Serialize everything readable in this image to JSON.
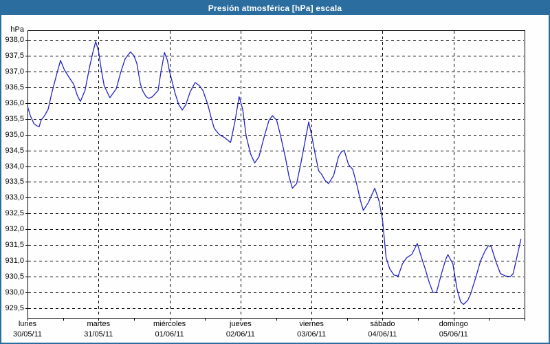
{
  "window": {
    "title": "Presión atmosférica [hPa] escala"
  },
  "colors": {
    "frame": "#2b6d9e",
    "title_text": "#ffffff",
    "plot_background": "#ffffff",
    "grid": "#000000",
    "axis": "#000000",
    "line": "#2323c8",
    "label_text": "#000000"
  },
  "chart_data": {
    "type": "line",
    "title": "Presión atmosférica [hPa] escala",
    "ylabel": "hPa",
    "grid": {
      "style": "dashed",
      "horizontal": true,
      "vertical": "day-boundaries"
    },
    "legend": "none",
    "y_axis": {
      "unit": "hPa",
      "step": 0.5,
      "axis_min": 929.2,
      "axis_max": 938.3,
      "tick_values": [
        938.0,
        937.5,
        937.0,
        936.5,
        936.0,
        935.5,
        935.0,
        934.5,
        934.0,
        933.5,
        933.0,
        932.5,
        932.0,
        931.5,
        931.0,
        930.5,
        930.0,
        929.5
      ],
      "tick_labels": [
        "938,0",
        "937,5",
        "937,0",
        "936,5",
        "936,0",
        "935,5",
        "935,0",
        "934,5",
        "934,0",
        "933,5",
        "933,0",
        "932,5",
        "932,0",
        "931,5",
        "931,0",
        "930,5",
        "930,0",
        "929,5"
      ]
    },
    "x_axis": {
      "units": "days",
      "minor_ticks_per_day": 2,
      "days": [
        {
          "label": "lunes",
          "date": "30/05/11"
        },
        {
          "label": "martes",
          "date": "31/05/11"
        },
        {
          "label": "miércoles",
          "date": "01/06/11"
        },
        {
          "label": "jueves",
          "date": "02/06/11"
        },
        {
          "label": "viernes",
          "date": "03/06/11"
        },
        {
          "label": "sábado",
          "date": "04/06/11"
        },
        {
          "label": "domingo",
          "date": "05/06/11"
        }
      ]
    },
    "series": [
      {
        "name": "Presión atmosférica",
        "color": "#2323c8",
        "points": [
          [
            0.0,
            935.9
          ],
          [
            0.04,
            935.6
          ],
          [
            0.09,
            935.35
          ],
          [
            0.13,
            935.28
          ],
          [
            0.165,
            935.25
          ],
          [
            0.19,
            935.45
          ],
          [
            0.24,
            935.6
          ],
          [
            0.29,
            935.8
          ],
          [
            0.34,
            936.3
          ],
          [
            0.41,
            936.9
          ],
          [
            0.465,
            937.35
          ],
          [
            0.52,
            937.05
          ],
          [
            0.59,
            936.8
          ],
          [
            0.65,
            936.6
          ],
          [
            0.7,
            936.25
          ],
          [
            0.745,
            936.05
          ],
          [
            0.81,
            936.4
          ],
          [
            0.87,
            937.1
          ],
          [
            0.92,
            937.6
          ],
          [
            0.96,
            937.95
          ],
          [
            1.0,
            937.65
          ],
          [
            1.04,
            937.05
          ],
          [
            1.08,
            936.55
          ],
          [
            1.16,
            936.17
          ],
          [
            1.25,
            936.45
          ],
          [
            1.31,
            936.95
          ],
          [
            1.375,
            937.4
          ],
          [
            1.45,
            937.62
          ],
          [
            1.5,
            937.5
          ],
          [
            1.54,
            937.25
          ],
          [
            1.59,
            936.6
          ],
          [
            1.62,
            936.4
          ],
          [
            1.67,
            936.2
          ],
          [
            1.71,
            936.15
          ],
          [
            1.76,
            936.2
          ],
          [
            1.84,
            936.4
          ],
          [
            1.88,
            937.0
          ],
          [
            1.93,
            937.6
          ],
          [
            1.97,
            937.35
          ],
          [
            2.0,
            937.0
          ],
          [
            2.08,
            936.3
          ],
          [
            2.13,
            935.95
          ],
          [
            2.18,
            935.78
          ],
          [
            2.23,
            935.95
          ],
          [
            2.29,
            936.35
          ],
          [
            2.36,
            936.65
          ],
          [
            2.42,
            936.55
          ],
          [
            2.47,
            936.4
          ],
          [
            2.54,
            935.95
          ],
          [
            2.585,
            935.55
          ],
          [
            2.63,
            935.2
          ],
          [
            2.7,
            935.0
          ],
          [
            2.78,
            934.9
          ],
          [
            2.86,
            934.75
          ],
          [
            2.92,
            935.4
          ],
          [
            2.98,
            936.2
          ],
          [
            3.03,
            935.8
          ],
          [
            3.08,
            934.95
          ],
          [
            3.14,
            934.4
          ],
          [
            3.2,
            934.1
          ],
          [
            3.26,
            934.3
          ],
          [
            3.33,
            934.9
          ],
          [
            3.4,
            935.45
          ],
          [
            3.45,
            935.6
          ],
          [
            3.51,
            935.45
          ],
          [
            3.56,
            935.0
          ],
          [
            3.63,
            934.3
          ],
          [
            3.68,
            933.7
          ],
          [
            3.73,
            933.3
          ],
          [
            3.79,
            933.45
          ],
          [
            3.85,
            934.1
          ],
          [
            3.91,
            934.8
          ],
          [
            3.96,
            935.4
          ],
          [
            4.0,
            935.0
          ],
          [
            4.05,
            934.4
          ],
          [
            4.1,
            933.85
          ],
          [
            4.14,
            933.75
          ],
          [
            4.19,
            933.55
          ],
          [
            4.24,
            933.45
          ],
          [
            4.31,
            933.7
          ],
          [
            4.38,
            934.3
          ],
          [
            4.42,
            934.45
          ],
          [
            4.46,
            934.5
          ],
          [
            4.52,
            934.05
          ],
          [
            4.58,
            933.9
          ],
          [
            4.64,
            933.4
          ],
          [
            4.69,
            932.9
          ],
          [
            4.73,
            932.6
          ],
          [
            4.8,
            932.85
          ],
          [
            4.89,
            933.3
          ],
          [
            4.95,
            932.9
          ],
          [
            5.0,
            932.3
          ],
          [
            5.05,
            931.1
          ],
          [
            5.1,
            930.75
          ],
          [
            5.16,
            930.55
          ],
          [
            5.22,
            930.52
          ],
          [
            5.28,
            930.9
          ],
          [
            5.34,
            931.1
          ],
          [
            5.41,
            931.2
          ],
          [
            5.49,
            931.55
          ],
          [
            5.55,
            931.1
          ],
          [
            5.6,
            930.75
          ],
          [
            5.66,
            930.3
          ],
          [
            5.71,
            930.0
          ],
          [
            5.76,
            930.0
          ],
          [
            5.83,
            930.6
          ],
          [
            5.89,
            931.05
          ],
          [
            5.92,
            931.2
          ],
          [
            5.99,
            930.9
          ],
          [
            6.05,
            930.1
          ],
          [
            6.1,
            929.7
          ],
          [
            6.14,
            929.62
          ],
          [
            6.2,
            929.75
          ],
          [
            6.24,
            929.95
          ],
          [
            6.31,
            930.45
          ],
          [
            6.38,
            931.0
          ],
          [
            6.44,
            931.3
          ],
          [
            6.49,
            931.48
          ],
          [
            6.53,
            931.45
          ],
          [
            6.6,
            930.95
          ],
          [
            6.66,
            930.6
          ],
          [
            6.73,
            930.52
          ],
          [
            6.8,
            930.5
          ],
          [
            6.84,
            930.6
          ],
          [
            6.89,
            931.1
          ],
          [
            6.93,
            931.5
          ],
          [
            6.95,
            931.7
          ]
        ]
      }
    ]
  }
}
